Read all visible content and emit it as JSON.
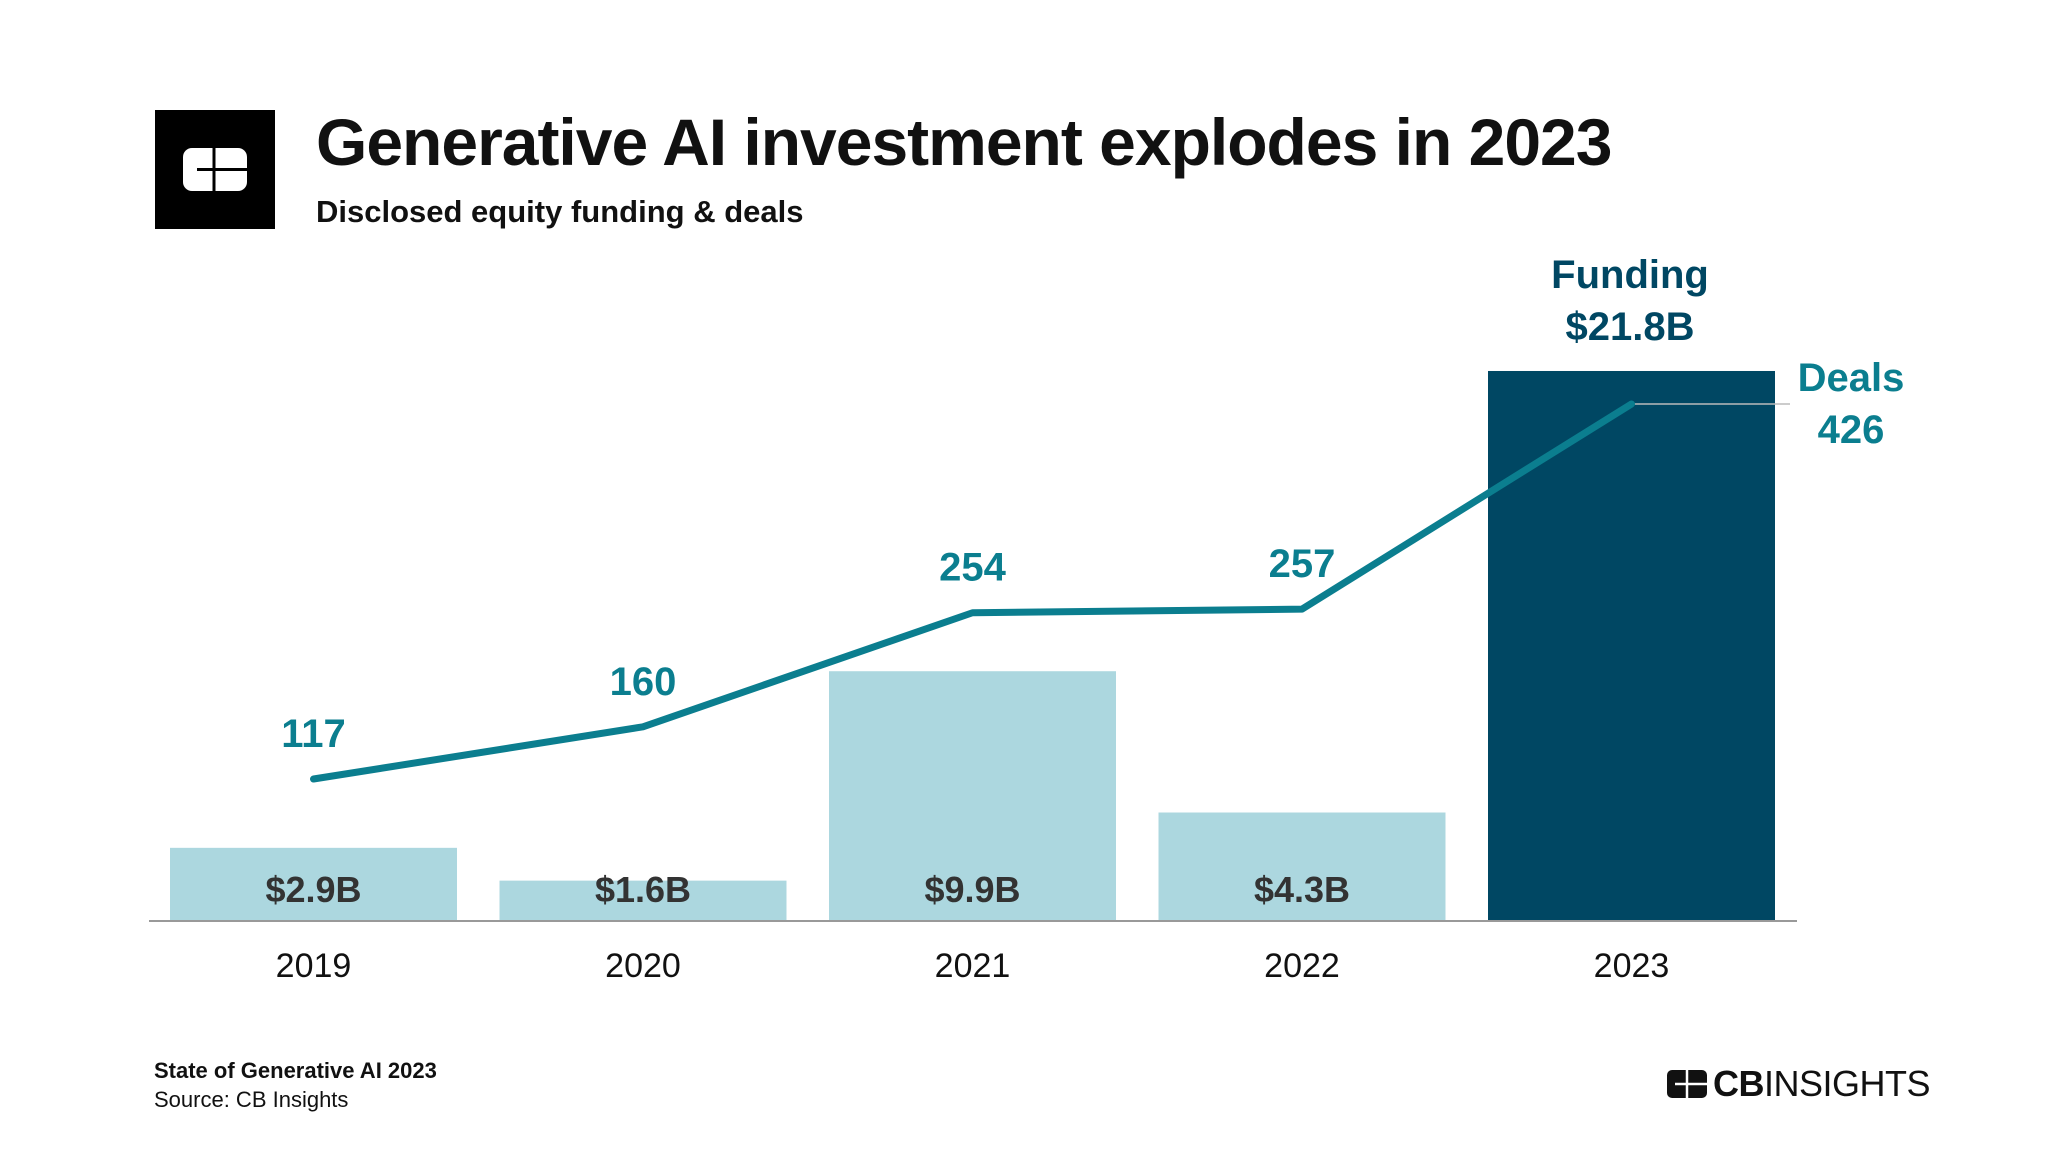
{
  "header": {
    "title": "Generative AI investment explodes in 2023",
    "subtitle": "Disclosed equity funding & deals"
  },
  "footer": {
    "report": "State of Generative AI 2023",
    "source": "Source: CB Insights",
    "brand_bold": "CB",
    "brand_light": "INSIGHTS"
  },
  "chart_data": {
    "type": "bar+line",
    "title": "Generative AI investment explodes in 2023",
    "subtitle": "Disclosed equity funding & deals",
    "categories": [
      "2019",
      "2020",
      "2021",
      "2022",
      "2023"
    ],
    "series": [
      {
        "name": "Funding",
        "kind": "bar",
        "unit": "$B",
        "values": [
          2.9,
          1.6,
          9.9,
          4.3,
          21.8
        ],
        "labels": [
          "$2.9B",
          "$1.6B",
          "$9.9B",
          "$4.3B",
          "$21.8B"
        ]
      },
      {
        "name": "Deals",
        "kind": "line",
        "values": [
          117,
          160,
          254,
          257,
          426
        ],
        "labels": [
          "117",
          "160",
          "254",
          "257",
          "426"
        ]
      }
    ],
    "annotations": {
      "funding_label": "Funding",
      "deals_label": "Deals"
    },
    "grid": false,
    "colors": {
      "bar": "#acd7df",
      "bar_highlight": "#004763",
      "line": "#0b7e8f",
      "bar_label": "#333333",
      "funding_label": "#004763"
    }
  }
}
